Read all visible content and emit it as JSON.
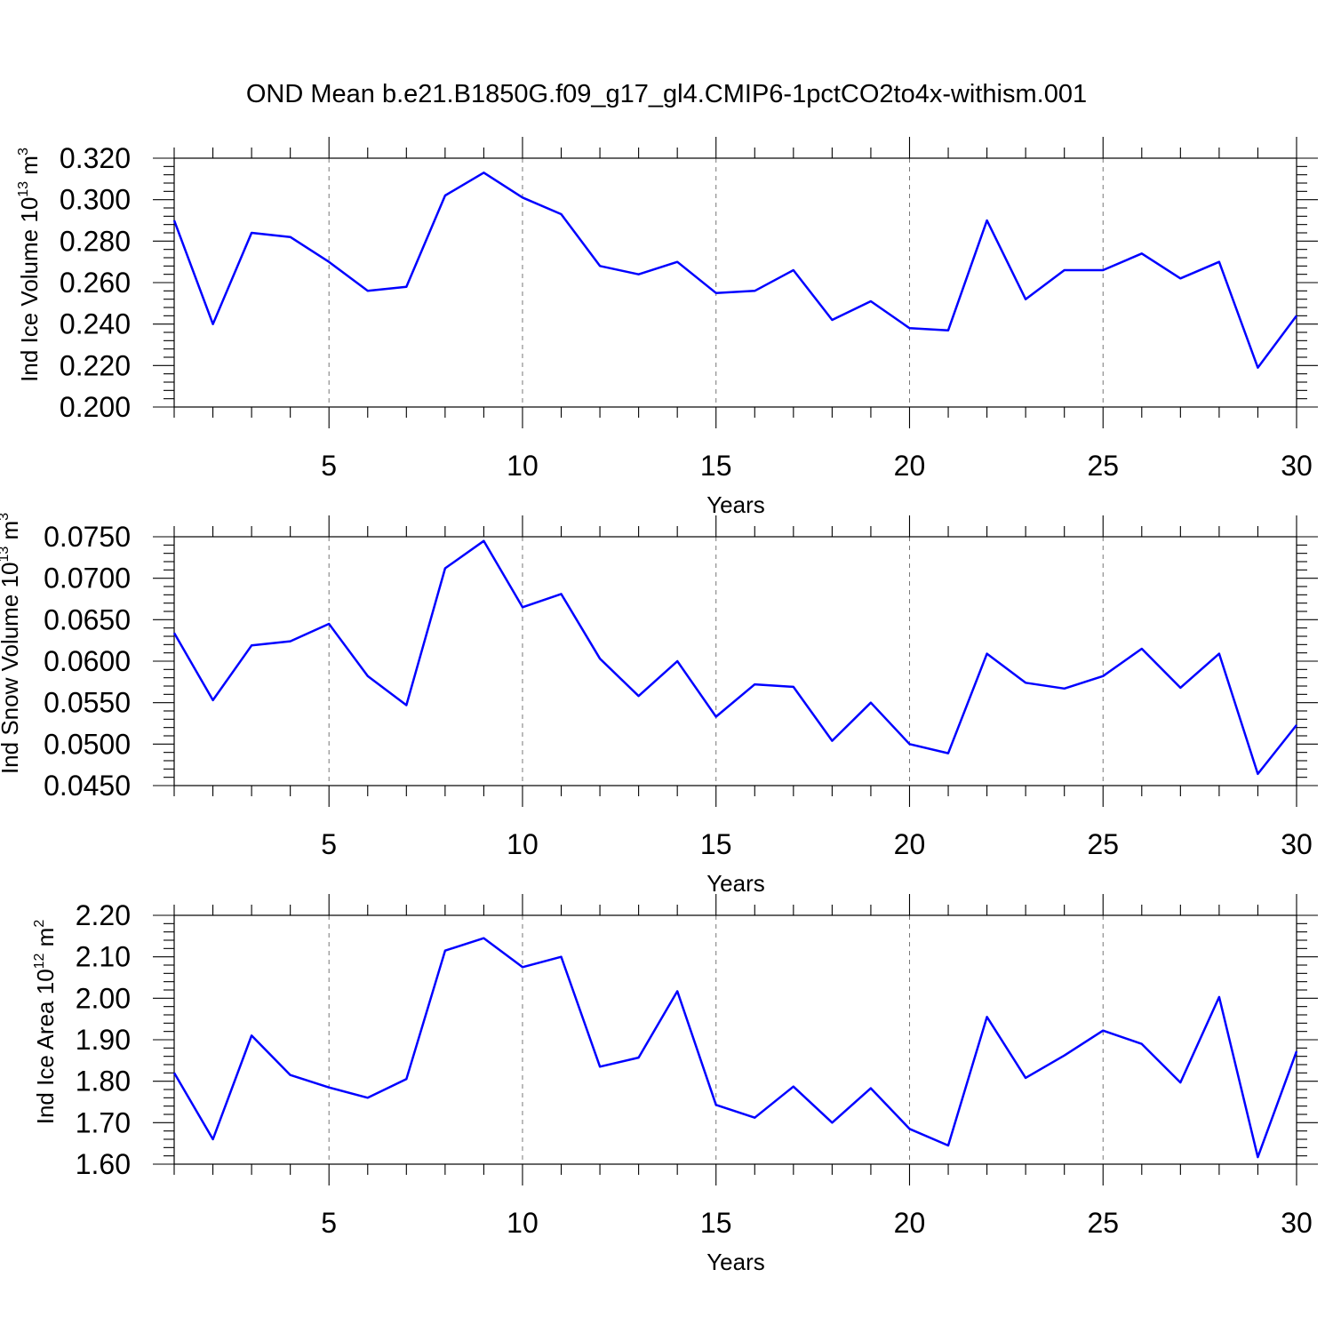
{
  "title": "OND Mean b.e21.B1850G.f09_g17_gl4.CMIP6-1pctCO2to4x-withism.001",
  "colors": {
    "series": "#0000ff",
    "grid": "#777777",
    "axis": "#000000"
  },
  "chart_data": [
    {
      "type": "line",
      "ylabel": "Ind Ice Volume 10",
      "ylabel_sup": "13",
      "ylabel_unit": " m",
      "ylabel_unit_sup": "3",
      "xlabel": "Years",
      "xlim": [
        1,
        30
      ],
      "ylim": [
        0.2,
        0.32
      ],
      "xticks": [
        5,
        10,
        15,
        20,
        25,
        30
      ],
      "xtick_labels": [
        "5",
        "10",
        "15",
        "20",
        "25",
        "30"
      ],
      "yticks": [
        0.2,
        0.22,
        0.24,
        0.26,
        0.28,
        0.3,
        0.32
      ],
      "ytick_labels": [
        "0.200",
        "0.220",
        "0.240",
        "0.260",
        "0.280",
        "0.300",
        "0.320"
      ],
      "grid": "vertical dashed at major x ticks",
      "x": [
        1,
        2,
        3,
        4,
        5,
        6,
        7,
        8,
        9,
        10,
        11,
        12,
        13,
        14,
        15,
        16,
        17,
        18,
        19,
        20,
        21,
        22,
        23,
        24,
        25,
        26,
        27,
        28,
        29,
        30
      ],
      "values": [
        0.29,
        0.24,
        0.284,
        0.282,
        0.27,
        0.256,
        0.258,
        0.302,
        0.313,
        0.301,
        0.293,
        0.268,
        0.264,
        0.27,
        0.255,
        0.256,
        0.266,
        0.242,
        0.251,
        0.238,
        0.237,
        0.29,
        0.252,
        0.266,
        0.266,
        0.274,
        0.262,
        0.27,
        0.219,
        0.244
      ]
    },
    {
      "type": "line",
      "ylabel": "Ind Snow Volume 10",
      "ylabel_sup": "13",
      "ylabel_unit": " m",
      "ylabel_unit_sup": "3",
      "xlabel": "Years",
      "xlim": [
        1,
        30
      ],
      "ylim": [
        0.045,
        0.075
      ],
      "xticks": [
        5,
        10,
        15,
        20,
        25,
        30
      ],
      "xtick_labels": [
        "5",
        "10",
        "15",
        "20",
        "25",
        "30"
      ],
      "yticks": [
        0.045,
        0.05,
        0.055,
        0.06,
        0.065,
        0.07,
        0.075
      ],
      "ytick_labels": [
        "0.0450",
        "0.0500",
        "0.0550",
        "0.0600",
        "0.0650",
        "0.0700",
        "0.0750"
      ],
      "grid": "vertical dashed at major x ticks",
      "x": [
        1,
        2,
        3,
        4,
        5,
        6,
        7,
        8,
        9,
        10,
        11,
        12,
        13,
        14,
        15,
        16,
        17,
        18,
        19,
        20,
        21,
        22,
        23,
        24,
        25,
        26,
        27,
        28,
        29,
        30
      ],
      "values": [
        0.0634,
        0.0553,
        0.0619,
        0.0624,
        0.0645,
        0.0582,
        0.0547,
        0.0712,
        0.0745,
        0.0665,
        0.0681,
        0.0603,
        0.0558,
        0.06,
        0.0533,
        0.0572,
        0.0569,
        0.0504,
        0.055,
        0.05,
        0.0489,
        0.0609,
        0.0574,
        0.0567,
        0.0582,
        0.0615,
        0.0568,
        0.0609,
        0.0464,
        0.0523
      ]
    },
    {
      "type": "line",
      "ylabel": "Ind Ice Area 10",
      "ylabel_sup": "12",
      "ylabel_unit": " m",
      "ylabel_unit_sup": "2",
      "xlabel": "Years",
      "xlim": [
        1,
        30
      ],
      "ylim": [
        1.6,
        2.2
      ],
      "xticks": [
        5,
        10,
        15,
        20,
        25,
        30
      ],
      "xtick_labels": [
        "5",
        "10",
        "15",
        "20",
        "25",
        "30"
      ],
      "yticks": [
        1.6,
        1.7,
        1.8,
        1.9,
        2.0,
        2.1,
        2.2
      ],
      "ytick_labels": [
        "1.60",
        "1.70",
        "1.80",
        "1.90",
        "2.00",
        "2.10",
        "2.20"
      ],
      "grid": "vertical dashed at major x ticks",
      "x": [
        1,
        2,
        3,
        4,
        5,
        6,
        7,
        8,
        9,
        10,
        11,
        12,
        13,
        14,
        15,
        16,
        17,
        18,
        19,
        20,
        21,
        22,
        23,
        24,
        25,
        26,
        27,
        28,
        29,
        30
      ],
      "values": [
        1.82,
        1.66,
        1.91,
        1.815,
        1.785,
        1.76,
        1.805,
        2.115,
        2.145,
        2.075,
        2.1,
        1.835,
        1.857,
        2.017,
        1.743,
        1.712,
        1.787,
        1.7,
        1.783,
        1.685,
        1.645,
        1.955,
        1.808,
        1.862,
        1.922,
        1.89,
        1.797,
        2.003,
        1.617,
        1.872
      ]
    }
  ]
}
